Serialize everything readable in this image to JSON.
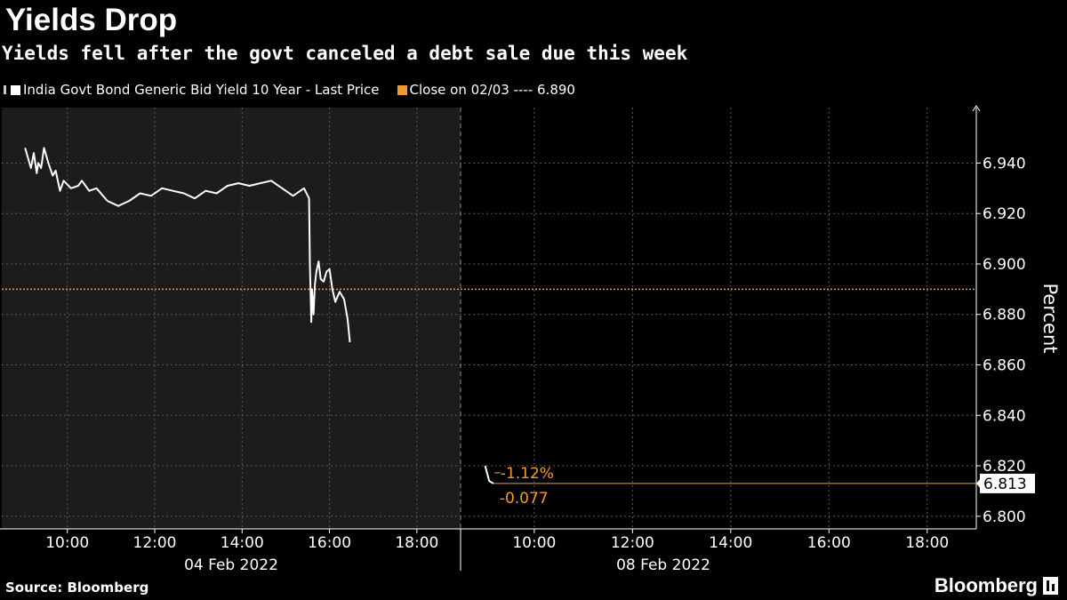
{
  "title": "Yields Drop",
  "subtitle": "Yields fell after the govt canceled a debt sale due this week",
  "legend": {
    "series_label": "India Govt Bond Generic Bid Yield 10 Year - Last Price",
    "close_label": "Close on 02/03 ---- 6.890"
  },
  "source": "Source: Bloomberg",
  "brand": "Bloomberg",
  "colors": {
    "background": "#000000",
    "past_day_panel": "#1c1c1c",
    "series": "#ffffff",
    "accent": "#f09a2e",
    "grid": "#5a5a5a"
  },
  "chart_data": {
    "type": "line",
    "title": "Yields Drop",
    "subtitle": "Yields fell after the govt canceled a debt sale due this week",
    "ylabel": "Percent",
    "ylim": [
      6.795,
      6.962
    ],
    "yticks": [
      "6.800",
      "6.820",
      "6.840",
      "6.860",
      "6.880",
      "6.900",
      "6.920",
      "6.940"
    ],
    "grid": true,
    "legend_position": "top-left",
    "reference_line": {
      "label": "Close on 02/03",
      "value": 6.89
    },
    "current_value": {
      "label": "6.813",
      "value": 6.813
    },
    "change_annotations": {
      "percent": "-1.12%",
      "absolute": "-0.077"
    },
    "days": [
      {
        "date": "04 Feb 2022",
        "hour_ticks": [
          "10:00",
          "12:00",
          "14:00",
          "16:00",
          "18:00"
        ]
      },
      {
        "date": "08 Feb 2022",
        "hour_ticks": [
          "10:00",
          "12:00",
          "14:00",
          "16:00",
          "18:00"
        ]
      }
    ],
    "series": [
      {
        "name": "India Govt Bond Generic Bid Yield 10 Year - Last Price",
        "segments": [
          {
            "date": "04 Feb 2022",
            "x": [
              "09:02",
              "09:10",
              "09:14",
              "09:18",
              "09:20",
              "09:24",
              "09:28",
              "09:34",
              "09:40",
              "09:44",
              "09:50",
              "09:55",
              "10:05",
              "10:15",
              "10:20",
              "10:30",
              "10:40",
              "10:55",
              "11:10",
              "11:25",
              "11:40",
              "11:55",
              "12:10",
              "12:25",
              "12:40",
              "12:55",
              "13:10",
              "13:25",
              "13:40",
              "13:55",
              "14:10",
              "14:25",
              "14:40",
              "14:55",
              "15:10",
              "15:25",
              "15:32",
              "15:33",
              "15:35",
              "15:36",
              "15:38",
              "15:40",
              "15:42",
              "15:45",
              "15:48",
              "15:52",
              "15:56",
              "16:00",
              "16:04",
              "16:08",
              "16:14",
              "16:20",
              "16:25",
              "16:28"
            ],
            "y": [
              6.946,
              6.938,
              6.944,
              6.936,
              6.94,
              6.938,
              6.946,
              6.94,
              6.935,
              6.937,
              6.929,
              6.933,
              6.93,
              6.931,
              6.933,
              6.929,
              6.93,
              6.925,
              6.923,
              6.925,
              6.928,
              6.927,
              6.93,
              6.929,
              6.928,
              6.926,
              6.929,
              6.928,
              6.931,
              6.932,
              6.931,
              6.932,
              6.933,
              6.93,
              6.927,
              6.93,
              6.926,
              6.9,
              6.877,
              6.89,
              6.88,
              6.892,
              6.897,
              6.901,
              6.894,
              6.893,
              6.897,
              6.898,
              6.89,
              6.885,
              6.889,
              6.886,
              6.878,
              6.869
            ]
          },
          {
            "date": "08 Feb 2022",
            "x": [
              "09:00",
              "09:05",
              "09:10"
            ],
            "y": [
              6.82,
              6.814,
              6.813
            ]
          }
        ]
      }
    ]
  }
}
